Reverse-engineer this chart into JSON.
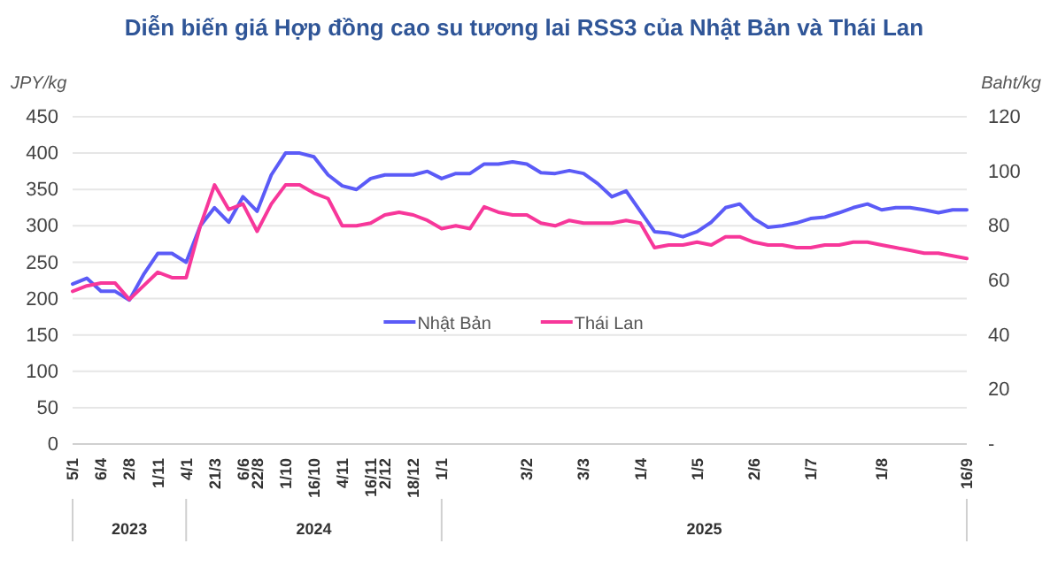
{
  "chart_data": {
    "type": "line",
    "title": "Diễn biến giá Hợp đồng cao su tương lai RSS3 của Nhật Bản và Thái Lan",
    "ylabel": "JPY/kg",
    "y2label": "Baht/kg",
    "categories": [
      "5/1",
      null,
      "6/4",
      null,
      "2/8",
      null,
      "1/11",
      null,
      "4/1",
      null,
      "21/3",
      null,
      "6/6",
      "22/8",
      null,
      "1/10",
      null,
      "16/10",
      null,
      "4/11",
      null,
      "16/11",
      "2/12",
      null,
      "18/12",
      null,
      "1/1",
      null,
      null,
      null,
      null,
      null,
      "3/2",
      null,
      null,
      null,
      "3/3",
      null,
      null,
      null,
      "1/4",
      null,
      null,
      null,
      "1/5",
      null,
      null,
      null,
      "2/6",
      null,
      null,
      null,
      "1/7",
      null,
      null,
      null,
      null,
      "1/8",
      null,
      null,
      null,
      null,
      null,
      "16/9"
    ],
    "series": [
      {
        "name": "Nhật Bản",
        "color": "#5b5bf7",
        "values": [
          220,
          228,
          210,
          210,
          198,
          233,
          262,
          262,
          250,
          300,
          325,
          305,
          340,
          320,
          370,
          400,
          400,
          395,
          370,
          355,
          350,
          365,
          370,
          370,
          370,
          375,
          365,
          372,
          372,
          385,
          385,
          388,
          385,
          373,
          372,
          376,
          372,
          358,
          340,
          348,
          320,
          292,
          290,
          285,
          292,
          305,
          325,
          330,
          310,
          298,
          300,
          304,
          310,
          312,
          318,
          325,
          330,
          322,
          325,
          325,
          322,
          318,
          322,
          322
        ]
      },
      {
        "name": "Thái Lan",
        "color": "#f7379a",
        "axis": "y2",
        "values": [
          56,
          58,
          59,
          59,
          53,
          58,
          63,
          61,
          61,
          80,
          95,
          86,
          88,
          78,
          88,
          95,
          95,
          92,
          90,
          80,
          80,
          81,
          84,
          85,
          84,
          82,
          79,
          80,
          79,
          87,
          85,
          84,
          84,
          81,
          80,
          82,
          81,
          81,
          81,
          82,
          81,
          72,
          73,
          73,
          74,
          73,
          76,
          76,
          74,
          73,
          73,
          72,
          72,
          73,
          73,
          74,
          74,
          73,
          72,
          71,
          70,
          70,
          69,
          68
        ]
      }
    ],
    "ylim": [
      0,
      450
    ],
    "yticks": [
      0,
      50,
      100,
      150,
      200,
      250,
      300,
      350,
      400,
      450
    ],
    "y2lim": [
      0,
      120
    ],
    "y2ticks": [
      {
        "value": 0,
        "label": "-"
      },
      20,
      40,
      60,
      80,
      100,
      120
    ],
    "grid": "y",
    "legend": "bottom",
    "marker": "none",
    "line_style": "solid",
    "annotations": [
      "2023",
      "2024",
      "2025"
    ]
  }
}
